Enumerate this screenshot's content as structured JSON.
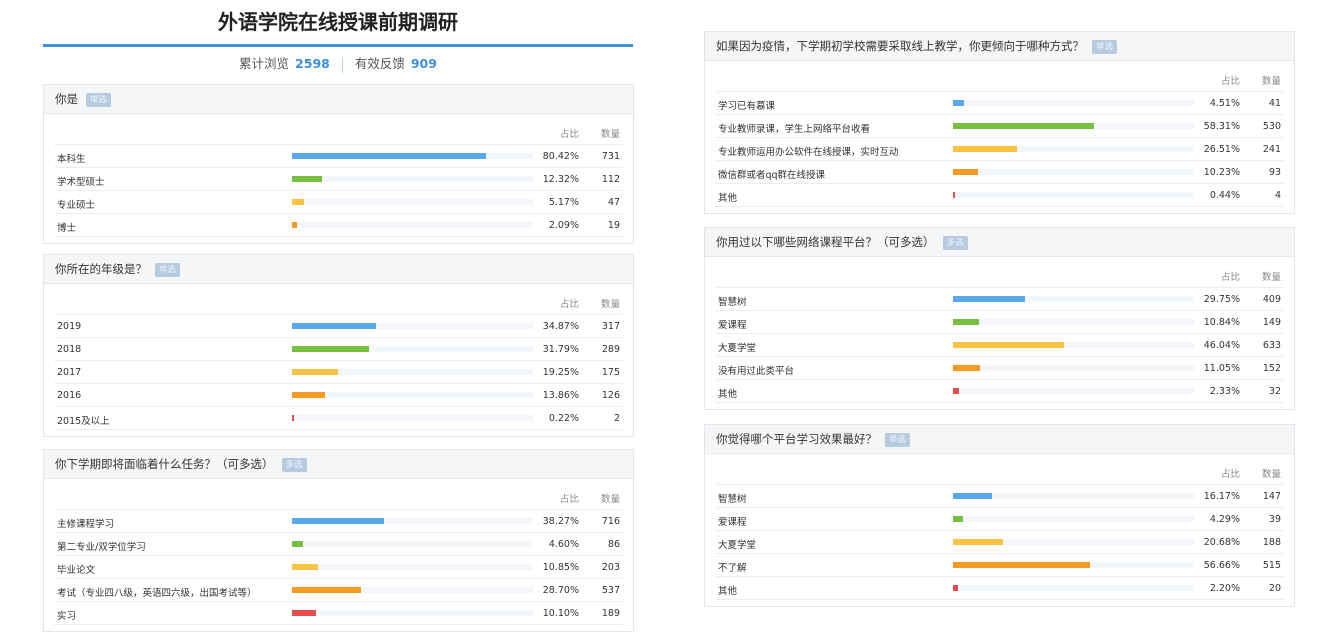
{
  "title": "外语学院在线授课前期调研",
  "stats": {
    "views_label": "累计浏览",
    "views": "2598",
    "feedback_label": "有效反馈",
    "feedback": "909"
  },
  "columns": {
    "ratio": "占比",
    "count": "数量"
  },
  "colors": [
    "#5aa8ec",
    "#76bf3f",
    "#fbc343",
    "#f59a22",
    "#e84b4b"
  ],
  "questions": [
    {
      "title": "你是",
      "type": "单选",
      "options": [
        {
          "label": "本科生",
          "pct": "80.42%",
          "value": 80.42,
          "count": "731"
        },
        {
          "label": "学术型硕士",
          "pct": "12.32%",
          "value": 12.32,
          "count": "112"
        },
        {
          "label": "专业硕士",
          "pct": "5.17%",
          "value": 5.17,
          "count": "47"
        },
        {
          "label": "博士",
          "pct": "2.09%",
          "value": 2.09,
          "count": "19"
        }
      ]
    },
    {
      "title": "你所在的年级是？",
      "type": "单选",
      "options": [
        {
          "label": "2019",
          "pct": "34.87%",
          "value": 34.87,
          "count": "317"
        },
        {
          "label": "2018",
          "pct": "31.79%",
          "value": 31.79,
          "count": "289"
        },
        {
          "label": "2017",
          "pct": "19.25%",
          "value": 19.25,
          "count": "175"
        },
        {
          "label": "2016",
          "pct": "13.86%",
          "value": 13.86,
          "count": "126"
        },
        {
          "label": "2015及以上",
          "pct": "0.22%",
          "value": 0.22,
          "count": "2"
        }
      ]
    },
    {
      "title": "你下学期即将面临着什么任务？（可多选）",
      "type": "多选",
      "options": [
        {
          "label": "主修课程学习",
          "pct": "38.27%",
          "value": 38.27,
          "count": "716"
        },
        {
          "label": "第二专业/双学位学习",
          "pct": "4.60%",
          "value": 4.6,
          "count": "86"
        },
        {
          "label": "毕业论文",
          "pct": "10.85%",
          "value": 10.85,
          "count": "203"
        },
        {
          "label": "考试（专业四八级，英语四六级，出国考试等）",
          "pct": "28.70%",
          "value": 28.7,
          "count": "537"
        },
        {
          "label": "实习",
          "pct": "10.10%",
          "value": 10.1,
          "count": "189"
        }
      ]
    },
    {
      "title": "如果因为疫情，下学期初学校需要采取线上教学，你更倾向于哪种方式？",
      "type": "单选",
      "options": [
        {
          "label": "学习已有慕课",
          "pct": "4.51%",
          "value": 4.51,
          "count": "41"
        },
        {
          "label": "专业教师录课，学生上网络平台收看",
          "pct": "58.31%",
          "value": 58.31,
          "count": "530"
        },
        {
          "label": "专业教师运用办公软件在线授课，实时互动",
          "pct": "26.51%",
          "value": 26.51,
          "count": "241"
        },
        {
          "label": "微信群或者qq群在线授课",
          "pct": "10.23%",
          "value": 10.23,
          "count": "93"
        },
        {
          "label": "其他",
          "pct": "0.44%",
          "value": 0.44,
          "count": "4"
        }
      ]
    },
    {
      "title": "你用过以下哪些网络课程平台？（可多选）",
      "type": "多选",
      "options": [
        {
          "label": "智慧树",
          "pct": "29.75%",
          "value": 29.75,
          "count": "409"
        },
        {
          "label": "爱课程",
          "pct": "10.84%",
          "value": 10.84,
          "count": "149"
        },
        {
          "label": "大夏学堂",
          "pct": "46.04%",
          "value": 46.04,
          "count": "633"
        },
        {
          "label": "没有用过此类平台",
          "pct": "11.05%",
          "value": 11.05,
          "count": "152"
        },
        {
          "label": "其他",
          "pct": "2.33%",
          "value": 2.33,
          "count": "32"
        }
      ]
    },
    {
      "title": "你觉得哪个平台学习效果最好？",
      "type": "单选",
      "options": [
        {
          "label": "智慧树",
          "pct": "16.17%",
          "value": 16.17,
          "count": "147"
        },
        {
          "label": "爱课程",
          "pct": "4.29%",
          "value": 4.29,
          "count": "39"
        },
        {
          "label": "大夏学堂",
          "pct": "20.68%",
          "value": 20.68,
          "count": "188"
        },
        {
          "label": "不了解",
          "pct": "56.66%",
          "value": 56.66,
          "count": "515"
        },
        {
          "label": "其他",
          "pct": "2.20%",
          "value": 2.2,
          "count": "20"
        }
      ]
    }
  ]
}
